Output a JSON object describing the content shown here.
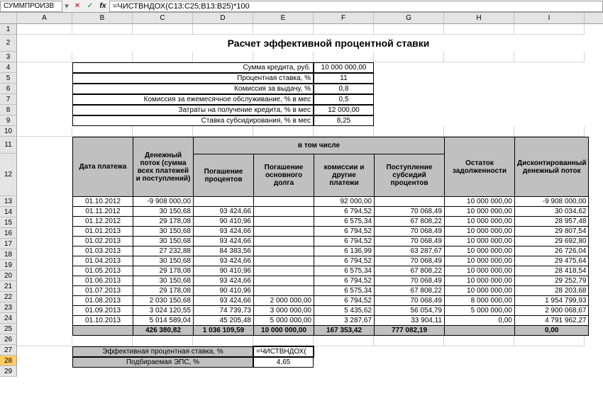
{
  "formula_bar": {
    "name_box": "СУММПРОИЗВ",
    "formula": "=ЧИСТВНДОХ(C13:C25;B13:B25)*100"
  },
  "columns": {
    "letters": [
      "A",
      "B",
      "C",
      "D",
      "E",
      "F",
      "G",
      "H",
      "I"
    ],
    "widths": [
      24,
      78,
      85,
      85,
      85,
      85,
      85,
      99,
      99,
      99
    ]
  },
  "title": "Расчет эффективной процентной ставки",
  "params": [
    {
      "label": "Сумма кредита, руб.",
      "value": "10 000 000,00"
    },
    {
      "label": "Процентная ставка, %",
      "value": "11"
    },
    {
      "label": "Комиссия за выдачу, %",
      "value": "0,8"
    },
    {
      "label": "Комиссия за ежемесячное обслуживание, % в мес",
      "value": "0,5"
    },
    {
      "label": "Затраты на получение кредита, % в мес",
      "value": "12 000,00"
    },
    {
      "label": "Ставка субсидирования, % в мес",
      "value": "8,25"
    }
  ],
  "headers": {
    "super": "в том числе",
    "cols": [
      "Дата платежа",
      "Денежный поток (сумма всех платежей и поступлений)",
      "Погашение процентов",
      "Погашение основного долга",
      "комиссии и другие платежи",
      "Поступление субсидий процентов",
      "Остаток задолженности",
      "Дисконтированный денежный поток"
    ]
  },
  "rows": [
    [
      "01.10.2012",
      "-9 908 000,00",
      "",
      "",
      "92 000,00",
      "",
      "10 000 000,00",
      "-9 908 000,00"
    ],
    [
      "01.11.2012",
      "30 150,68",
      "93 424,66",
      "",
      "6 794,52",
      "70 068,49",
      "10 000 000,00",
      "30 034,62"
    ],
    [
      "01.12.2012",
      "29 178,08",
      "90 410,96",
      "",
      "6 575,34",
      "67 808,22",
      "10 000 000,00",
      "28 957,48"
    ],
    [
      "01.01.2013",
      "30 150,68",
      "93 424,66",
      "",
      "6 794,52",
      "70 068,49",
      "10 000 000,00",
      "29 807,54"
    ],
    [
      "01.02.2013",
      "30 150,68",
      "93 424,66",
      "",
      "6 794,52",
      "70 068,49",
      "10 000 000,00",
      "29 692,80"
    ],
    [
      "01.03.2013",
      "27 232,88",
      "84 383,56",
      "",
      "6 136,99",
      "63 287,67",
      "10 000 000,00",
      "26 726,04"
    ],
    [
      "01.04.2013",
      "30 150,68",
      "93 424,66",
      "",
      "6 794,52",
      "70 068,49",
      "10 000 000,00",
      "29 475,64"
    ],
    [
      "01.05.2013",
      "29 178,08",
      "90 410,96",
      "",
      "6 575,34",
      "67 808,22",
      "10 000 000,00",
      "28 418,54"
    ],
    [
      "01.06.2013",
      "30 150,68",
      "93 424,66",
      "",
      "6 794,52",
      "70 068,49",
      "10 000 000,00",
      "29 252,79"
    ],
    [
      "01.07.2013",
      "29 178,08",
      "90 410,96",
      "",
      "6 575,34",
      "67 808,22",
      "10 000 000,00",
      "28 203,68"
    ],
    [
      "01.08.2013",
      "2 030 150,68",
      "93 424,66",
      "2 000 000,00",
      "6 794,52",
      "70 068,49",
      "8 000 000,00",
      "1 954 799,93"
    ],
    [
      "01.09.2013",
      "3 024 120,55",
      "74 739,73",
      "3 000 000,00",
      "5 435,62",
      "56 054,79",
      "5 000 000,00",
      "2 900 068,67"
    ],
    [
      "01.10.2013",
      "5 014 589,04",
      "45 205,48",
      "5 000 000,00",
      "3 287,67",
      "33 904,11",
      "0,00",
      "4 791 962,27"
    ]
  ],
  "totals": [
    "",
    "426 380,82",
    "1 036 109,59",
    "10 000 000,00",
    "167 353,42",
    "777 082,19",
    "",
    "0,00"
  ],
  "bottom": [
    {
      "label": "Эффективная процентная ставка, %",
      "value": "=ЧИСТВНДОХ("
    },
    {
      "label": "Подбираемая ЭПС, %",
      "value": "4,65"
    }
  ],
  "style": {
    "header_bg": "#c0c0c0",
    "selected_row_bg": "#ffcc66",
    "grid_line": "#d4d4d4",
    "border_color": "#000000"
  }
}
